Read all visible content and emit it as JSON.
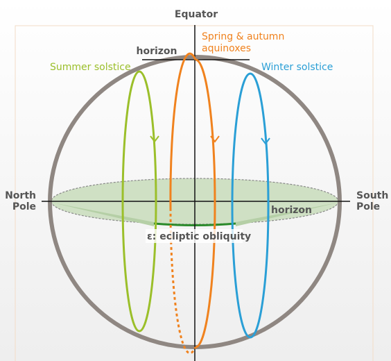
{
  "labels": {
    "equator": "Equator",
    "horizon_top": "horizon",
    "equinox_line1": "Spring & autumn",
    "equinox_line2": "aquinoxes",
    "summer": "Summer solstice",
    "winter": "Winter solstice",
    "north_line1": "North",
    "north_line2": "Pole",
    "south_line1": "South",
    "south_line2": "Pole",
    "horizon_right": "horizon",
    "obliquity": "ε: ecliptic obliquity"
  }
}
